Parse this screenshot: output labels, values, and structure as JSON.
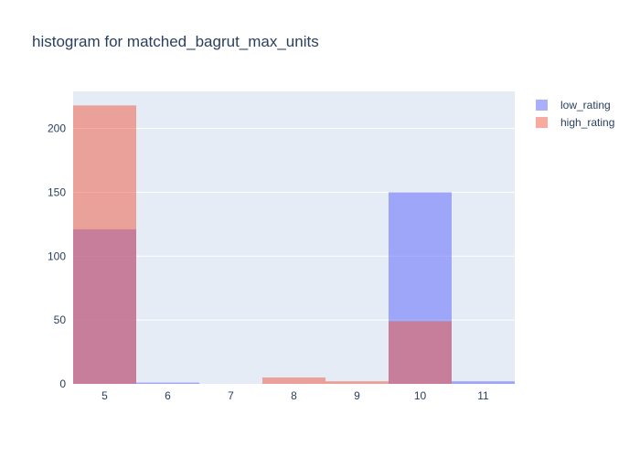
{
  "chart_data": {
    "type": "bar",
    "title": "histogram for matched_bagrut_max_units",
    "xlabel": "",
    "ylabel": "",
    "categories": [
      5,
      6,
      7,
      8,
      9,
      10,
      11
    ],
    "x_ticks": [
      "5",
      "6",
      "7",
      "8",
      "9",
      "10",
      "11"
    ],
    "y_ticks": [
      "0",
      "50",
      "100",
      "150",
      "200"
    ],
    "xlim": [
      4.5,
      11.5
    ],
    "ylim": [
      0,
      229
    ],
    "barmode": "overlay",
    "grid": true,
    "legend_position": "top-right",
    "series": [
      {
        "name": "low_rating",
        "color": "#636efa",
        "opacity": 0.55,
        "values": [
          121,
          1,
          0,
          0,
          0,
          150,
          2
        ]
      },
      {
        "name": "high_rating",
        "color": "#ef553b",
        "opacity": 0.5,
        "values": [
          218,
          0,
          0,
          5,
          2,
          49,
          0
        ]
      }
    ],
    "background": "#e5ecf6",
    "grid_color": "#ffffff"
  }
}
